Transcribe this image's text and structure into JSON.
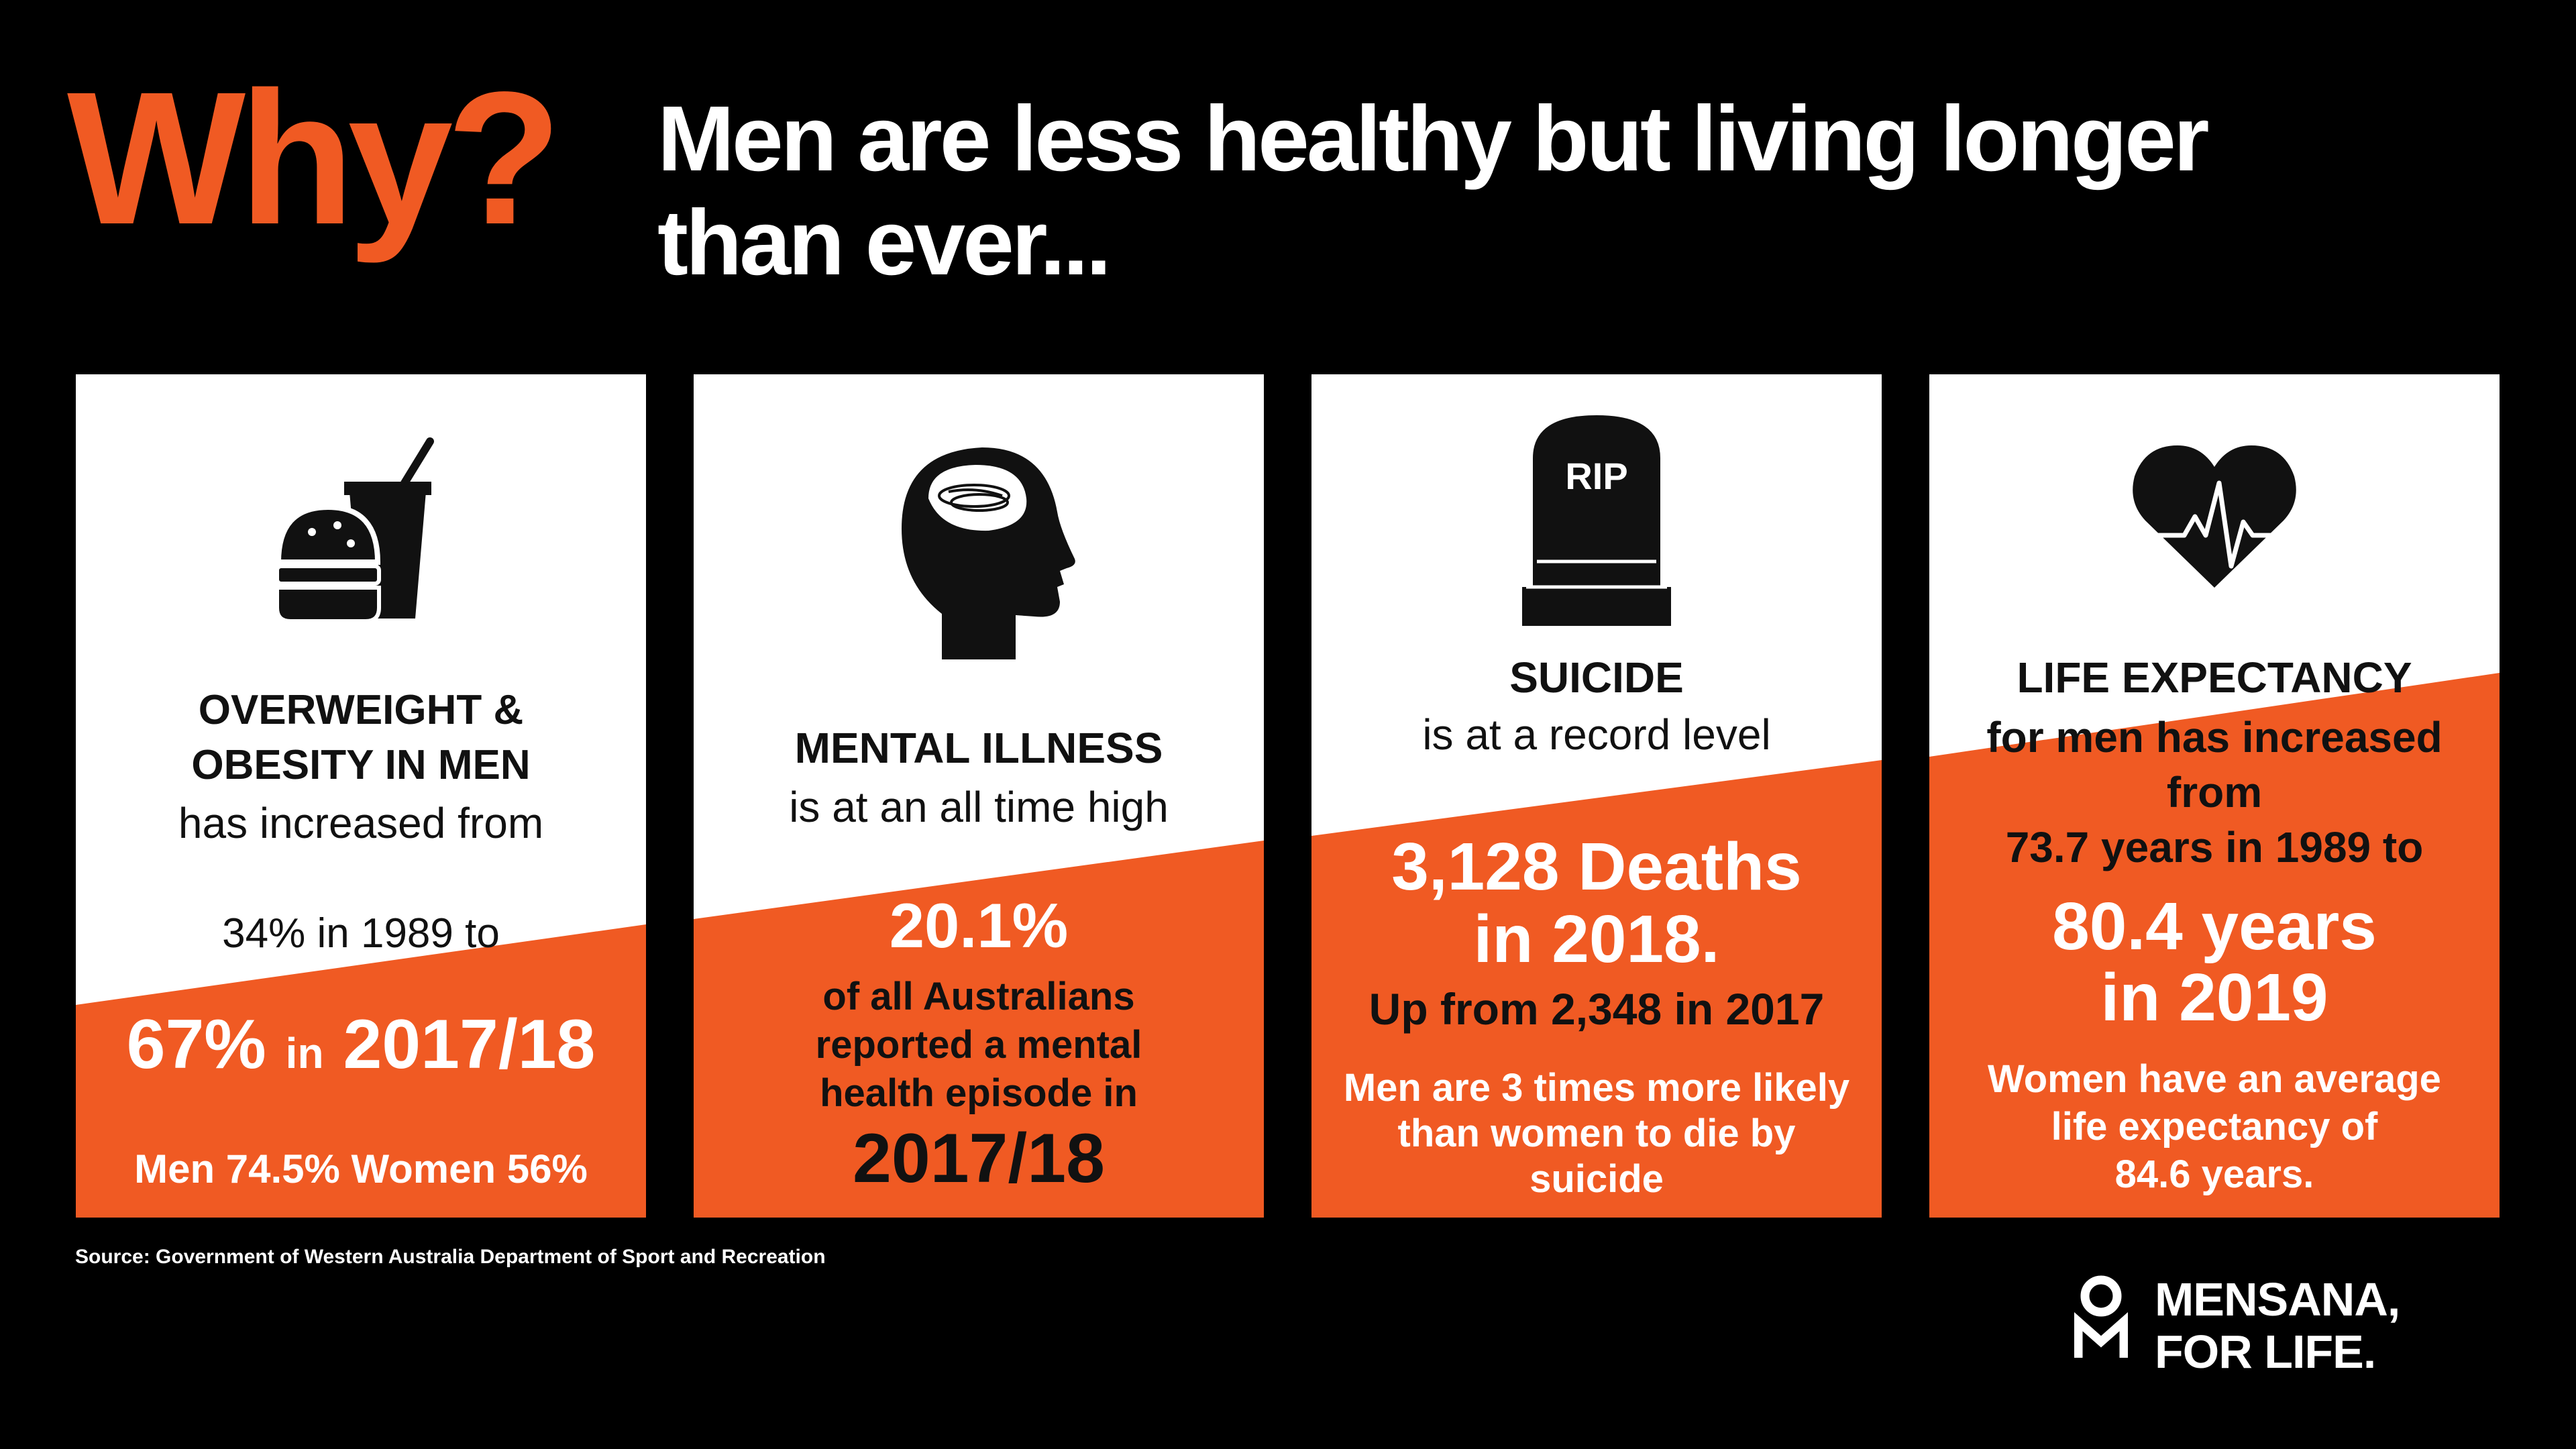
{
  "header": {
    "why": "Why?",
    "title_line1": "Men are less healthy but living longer",
    "title_line2": "than ever..."
  },
  "colors": {
    "accent": "#f05a23",
    "card": "#ffffff",
    "background": "#000000"
  },
  "cards": [
    {
      "icon": "fast-food-icon",
      "heading_line1": "OVERWEIGHT &",
      "heading_line2": "OBESITY IN MEN",
      "sub": "has increased from",
      "from": "34% in 1989 to",
      "big_value": "67%",
      "big_in": "in",
      "big_year": "2017/18",
      "note": "Men 74.5% Women 56%"
    },
    {
      "icon": "head-brain-icon",
      "heading": "MENTAL ILLNESS",
      "sub": "is at an all time high",
      "big": "20.1%",
      "line1": "of all Australians",
      "line2": "reported a mental",
      "line3": "health episode in",
      "year": "2017/18"
    },
    {
      "icon": "tombstone-icon",
      "icon_text": "RIP",
      "heading": "SUICIDE",
      "sub": "is at a record level",
      "big_line1": "3,128 Deaths",
      "big_line2": "in 2018.",
      "up_from": "Up from 2,348 in 2017",
      "note_line1": "Men are 3 times more likely",
      "note_line2": "than women to die by",
      "note_line3": "suicide"
    },
    {
      "icon": "heartbeat-icon",
      "heading": "LIFE EXPECTANCY",
      "line1": "for men has increased",
      "line2": "from",
      "line3": "73.7 years in 1989 to",
      "big_line1": "80.4 years",
      "big_line2": "in 2019",
      "note_line1": "Women have an average",
      "note_line2": "life expectancy of",
      "note_line3": "84.6 years."
    }
  ],
  "footer": {
    "source": "Source: Government of Western Australia Department of Sport and Recreation",
    "logo_icon": "mensana-om-logo",
    "logo_line1": "MENSANA,",
    "logo_line2": "FOR LIFE."
  }
}
